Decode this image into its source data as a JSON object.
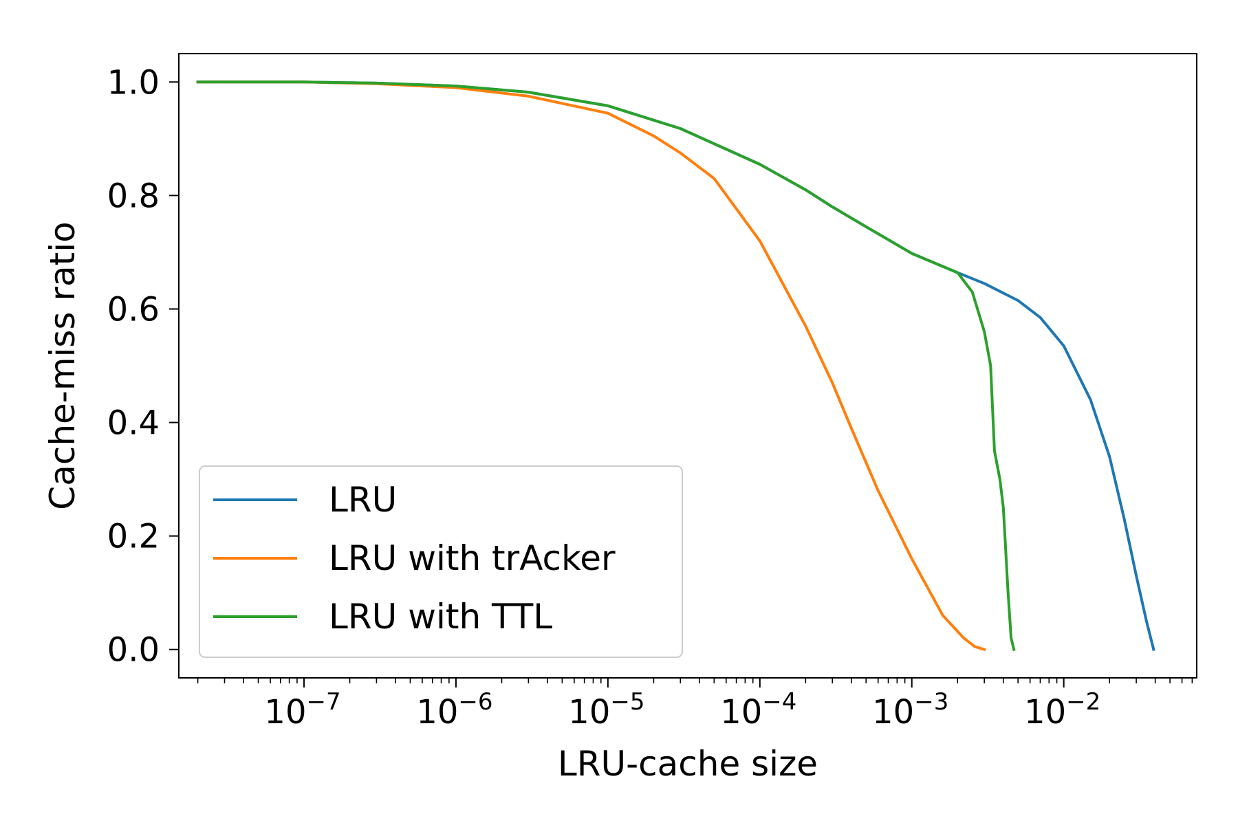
{
  "chart_data": {
    "type": "line",
    "title": "",
    "xlabel": "LRU-cache size",
    "ylabel": "Cache-miss ratio",
    "xscale": "log",
    "xlim": [
      1.5e-08,
      0.075
    ],
    "ylim": [
      -0.05,
      1.05
    ],
    "grid": false,
    "legend_position": "lower-left",
    "x_ticks": [
      {
        "value": 1e-07,
        "mantissa": "10",
        "exponent": "−7"
      },
      {
        "value": 1e-06,
        "mantissa": "10",
        "exponent": "−6"
      },
      {
        "value": 1e-05,
        "mantissa": "10",
        "exponent": "−5"
      },
      {
        "value": 0.0001,
        "mantissa": "10",
        "exponent": "−4"
      },
      {
        "value": 0.001,
        "mantissa": "10",
        "exponent": "−3"
      },
      {
        "value": 0.01,
        "mantissa": "10",
        "exponent": "−2"
      }
    ],
    "y_ticks": [
      {
        "value": 0.0,
        "label": "0.0"
      },
      {
        "value": 0.2,
        "label": "0.2"
      },
      {
        "value": 0.4,
        "label": "0.4"
      },
      {
        "value": 0.6,
        "label": "0.6"
      },
      {
        "value": 0.8,
        "label": "0.8"
      },
      {
        "value": 1.0,
        "label": "1.0"
      }
    ],
    "series": [
      {
        "name": "LRU",
        "color": "#1f77b4",
        "points": [
          [
            2e-08,
            1.0
          ],
          [
            1e-07,
            1.0
          ],
          [
            3e-07,
            0.998
          ],
          [
            1e-06,
            0.993
          ],
          [
            3e-06,
            0.982
          ],
          [
            1e-05,
            0.958
          ],
          [
            3e-05,
            0.918
          ],
          [
            0.0001,
            0.855
          ],
          [
            0.0002,
            0.81
          ],
          [
            0.0003,
            0.78
          ],
          [
            0.0005,
            0.745
          ],
          [
            0.001,
            0.698
          ],
          [
            0.002,
            0.664
          ],
          [
            0.003,
            0.645
          ],
          [
            0.005,
            0.615
          ],
          [
            0.007,
            0.585
          ],
          [
            0.01,
            0.535
          ],
          [
            0.015,
            0.44
          ],
          [
            0.02,
            0.34
          ],
          [
            0.025,
            0.23
          ],
          [
            0.03,
            0.13
          ],
          [
            0.035,
            0.05
          ],
          [
            0.039,
            0.0
          ]
        ]
      },
      {
        "name": "LRU with trAcker",
        "color": "#ff7f0e",
        "points": [
          [
            2e-08,
            1.0
          ],
          [
            1e-07,
            1.0
          ],
          [
            3e-07,
            0.997
          ],
          [
            1e-06,
            0.99
          ],
          [
            3e-06,
            0.975
          ],
          [
            1e-05,
            0.945
          ],
          [
            2e-05,
            0.905
          ],
          [
            3e-05,
            0.875
          ],
          [
            5e-05,
            0.83
          ],
          [
            0.0001,
            0.72
          ],
          [
            0.0002,
            0.57
          ],
          [
            0.0003,
            0.47
          ],
          [
            0.0004,
            0.39
          ],
          [
            0.0006,
            0.28
          ],
          [
            0.001,
            0.16
          ],
          [
            0.0016,
            0.06
          ],
          [
            0.0022,
            0.02
          ],
          [
            0.0026,
            0.005
          ],
          [
            0.003,
            0.0
          ]
        ]
      },
      {
        "name": "LRU with TTL",
        "color": "#2ca02c",
        "points": [
          [
            2e-08,
            1.0
          ],
          [
            1e-07,
            1.0
          ],
          [
            3e-07,
            0.998
          ],
          [
            1e-06,
            0.993
          ],
          [
            3e-06,
            0.982
          ],
          [
            1e-05,
            0.958
          ],
          [
            3e-05,
            0.918
          ],
          [
            0.0001,
            0.855
          ],
          [
            0.0002,
            0.81
          ],
          [
            0.0003,
            0.78
          ],
          [
            0.0005,
            0.745
          ],
          [
            0.001,
            0.698
          ],
          [
            0.002,
            0.664
          ],
          [
            0.0025,
            0.63
          ],
          [
            0.003,
            0.56
          ],
          [
            0.0033,
            0.5
          ],
          [
            0.0035,
            0.35
          ],
          [
            0.0038,
            0.3
          ],
          [
            0.004,
            0.25
          ],
          [
            0.0043,
            0.1
          ],
          [
            0.0045,
            0.02
          ],
          [
            0.0047,
            0.0
          ]
        ]
      }
    ]
  }
}
